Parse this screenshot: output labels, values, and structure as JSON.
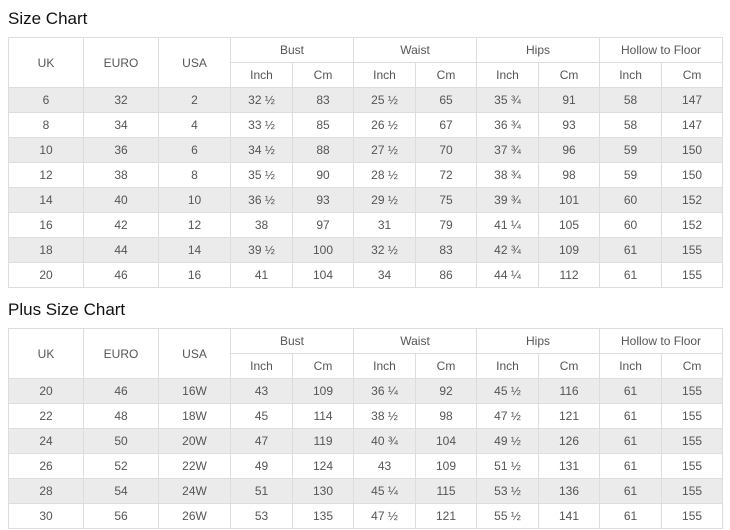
{
  "colors": {
    "background": "#ffffff",
    "row_alt": "#ebebeb",
    "border": "#dddddd",
    "cell_text": "#555555",
    "title_text": "#111111"
  },
  "tables": [
    {
      "title": "Size Chart",
      "merged_headers": [
        "UK",
        "EURO",
        "USA"
      ],
      "group_headers": [
        {
          "label": "Bust",
          "sub": [
            "Inch",
            "Cm"
          ]
        },
        {
          "label": "Waist",
          "sub": [
            "Inch",
            "Cm"
          ]
        },
        {
          "label": "Hips",
          "sub": [
            "Inch",
            "Cm"
          ]
        },
        {
          "label": "Hollow to Floor",
          "sub": [
            "Inch",
            "Cm"
          ]
        }
      ],
      "rows": [
        [
          "6",
          "32",
          "2",
          "32 ½",
          "83",
          "25 ½",
          "65",
          "35 ¾",
          "91",
          "58",
          "147"
        ],
        [
          "8",
          "34",
          "4",
          "33 ½",
          "85",
          "26 ½",
          "67",
          "36 ¾",
          "93",
          "58",
          "147"
        ],
        [
          "10",
          "36",
          "6",
          "34 ½",
          "88",
          "27 ½",
          "70",
          "37 ¾",
          "96",
          "59",
          "150"
        ],
        [
          "12",
          "38",
          "8",
          "35 ½",
          "90",
          "28 ½",
          "72",
          "38 ¾",
          "98",
          "59",
          "150"
        ],
        [
          "14",
          "40",
          "10",
          "36 ½",
          "93",
          "29 ½",
          "75",
          "39 ¾",
          "101",
          "60",
          "152"
        ],
        [
          "16",
          "42",
          "12",
          "38",
          "97",
          "31",
          "79",
          "41 ¼",
          "105",
          "60",
          "152"
        ],
        [
          "18",
          "44",
          "14",
          "39 ½",
          "100",
          "32 ½",
          "83",
          "42 ¾",
          "109",
          "61",
          "155"
        ],
        [
          "20",
          "46",
          "16",
          "41",
          "104",
          "34",
          "86",
          "44 ¼",
          "112",
          "61",
          "155"
        ]
      ]
    },
    {
      "title": "Plus Size Chart",
      "merged_headers": [
        "UK",
        "EURO",
        "USA"
      ],
      "group_headers": [
        {
          "label": "Bust",
          "sub": [
            "Inch",
            "Cm"
          ]
        },
        {
          "label": "Waist",
          "sub": [
            "Inch",
            "Cm"
          ]
        },
        {
          "label": "Hips",
          "sub": [
            "Inch",
            "Cm"
          ]
        },
        {
          "label": "Hollow to Floor",
          "sub": [
            "Inch",
            "Cm"
          ]
        }
      ],
      "rows": [
        [
          "20",
          "46",
          "16W",
          "43",
          "109",
          "36 ¼",
          "92",
          "45 ½",
          "116",
          "61",
          "155"
        ],
        [
          "22",
          "48",
          "18W",
          "45",
          "114",
          "38 ½",
          "98",
          "47 ½",
          "121",
          "61",
          "155"
        ],
        [
          "24",
          "50",
          "20W",
          "47",
          "119",
          "40 ¾",
          "104",
          "49 ½",
          "126",
          "61",
          "155"
        ],
        [
          "26",
          "52",
          "22W",
          "49",
          "124",
          "43",
          "109",
          "51 ½",
          "131",
          "61",
          "155"
        ],
        [
          "28",
          "54",
          "24W",
          "51",
          "130",
          "45 ¼",
          "115",
          "53 ½",
          "136",
          "61",
          "155"
        ],
        [
          "30",
          "56",
          "26W",
          "53",
          "135",
          "47 ½",
          "121",
          "55 ½",
          "141",
          "61",
          "155"
        ]
      ]
    }
  ]
}
